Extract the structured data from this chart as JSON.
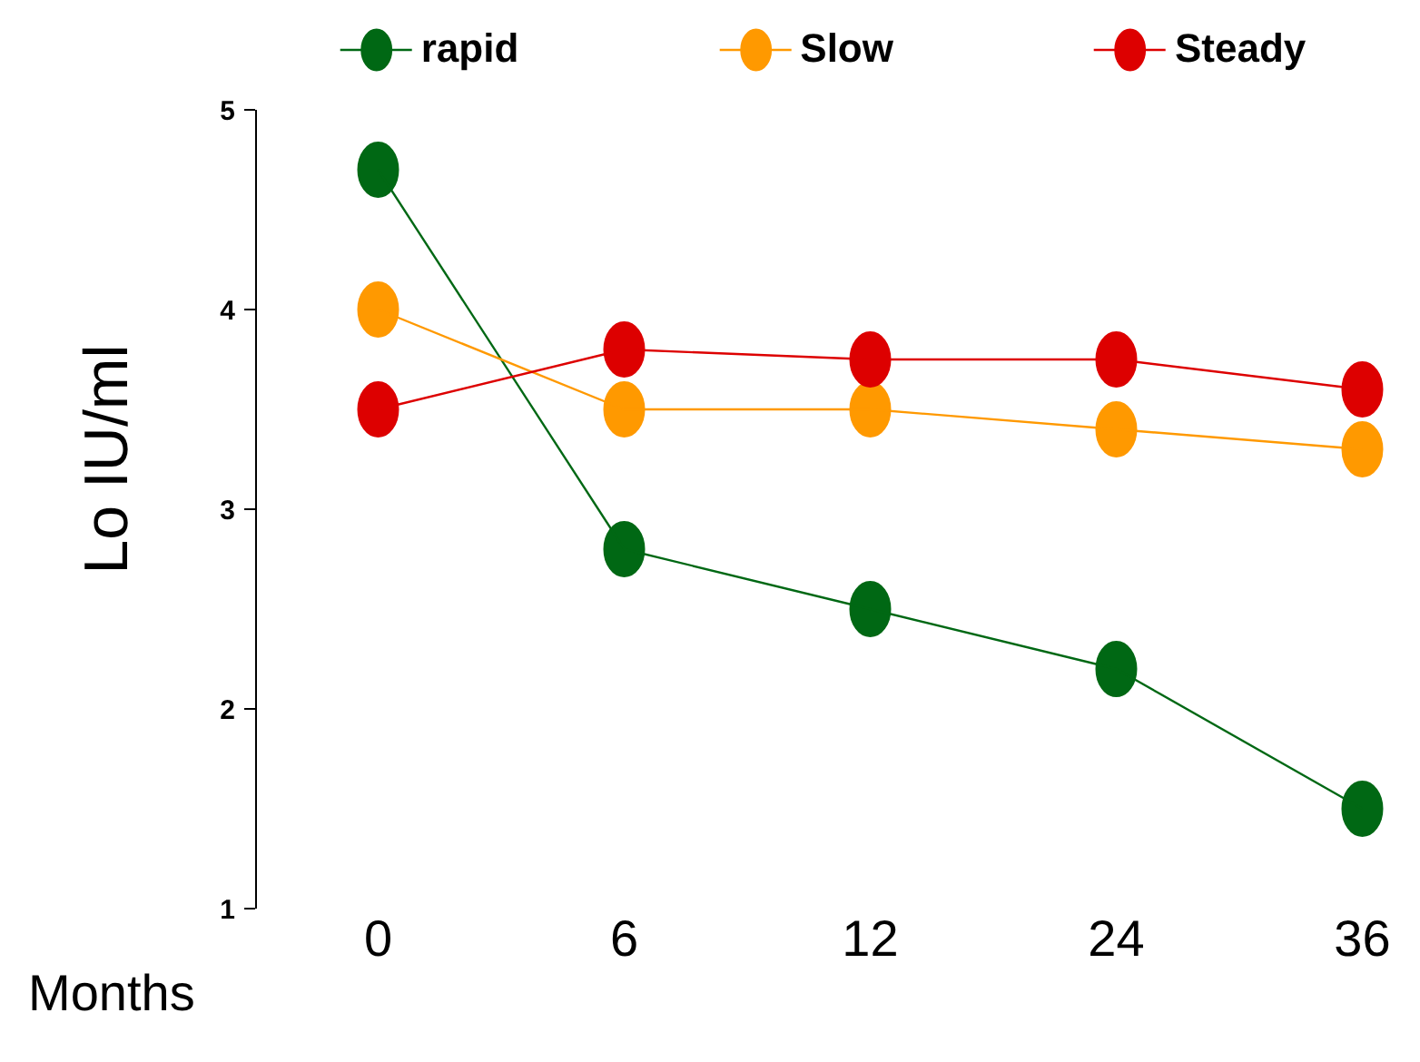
{
  "chart_data": {
    "type": "line",
    "xlabel": "Months",
    "ylabel": "Lo IU/ml",
    "categories": [
      "0",
      "6",
      "12",
      "24",
      "36"
    ],
    "series": [
      {
        "name": "rapid",
        "color": "#006814",
        "values": [
          4.7,
          2.8,
          2.5,
          2.2,
          1.5
        ]
      },
      {
        "name": "Slow",
        "color": "#ff9900",
        "values": [
          4.0,
          3.5,
          3.5,
          3.4,
          3.3
        ]
      },
      {
        "name": "Steady",
        "color": "#dd0000",
        "values": [
          3.5,
          3.8,
          3.75,
          3.75,
          3.6
        ]
      }
    ],
    "ylim": [
      1,
      5
    ],
    "yticks": [
      1,
      2,
      3,
      4,
      5
    ],
    "grid": false,
    "legend": "top",
    "marker": "circle",
    "line_style": "solid"
  }
}
